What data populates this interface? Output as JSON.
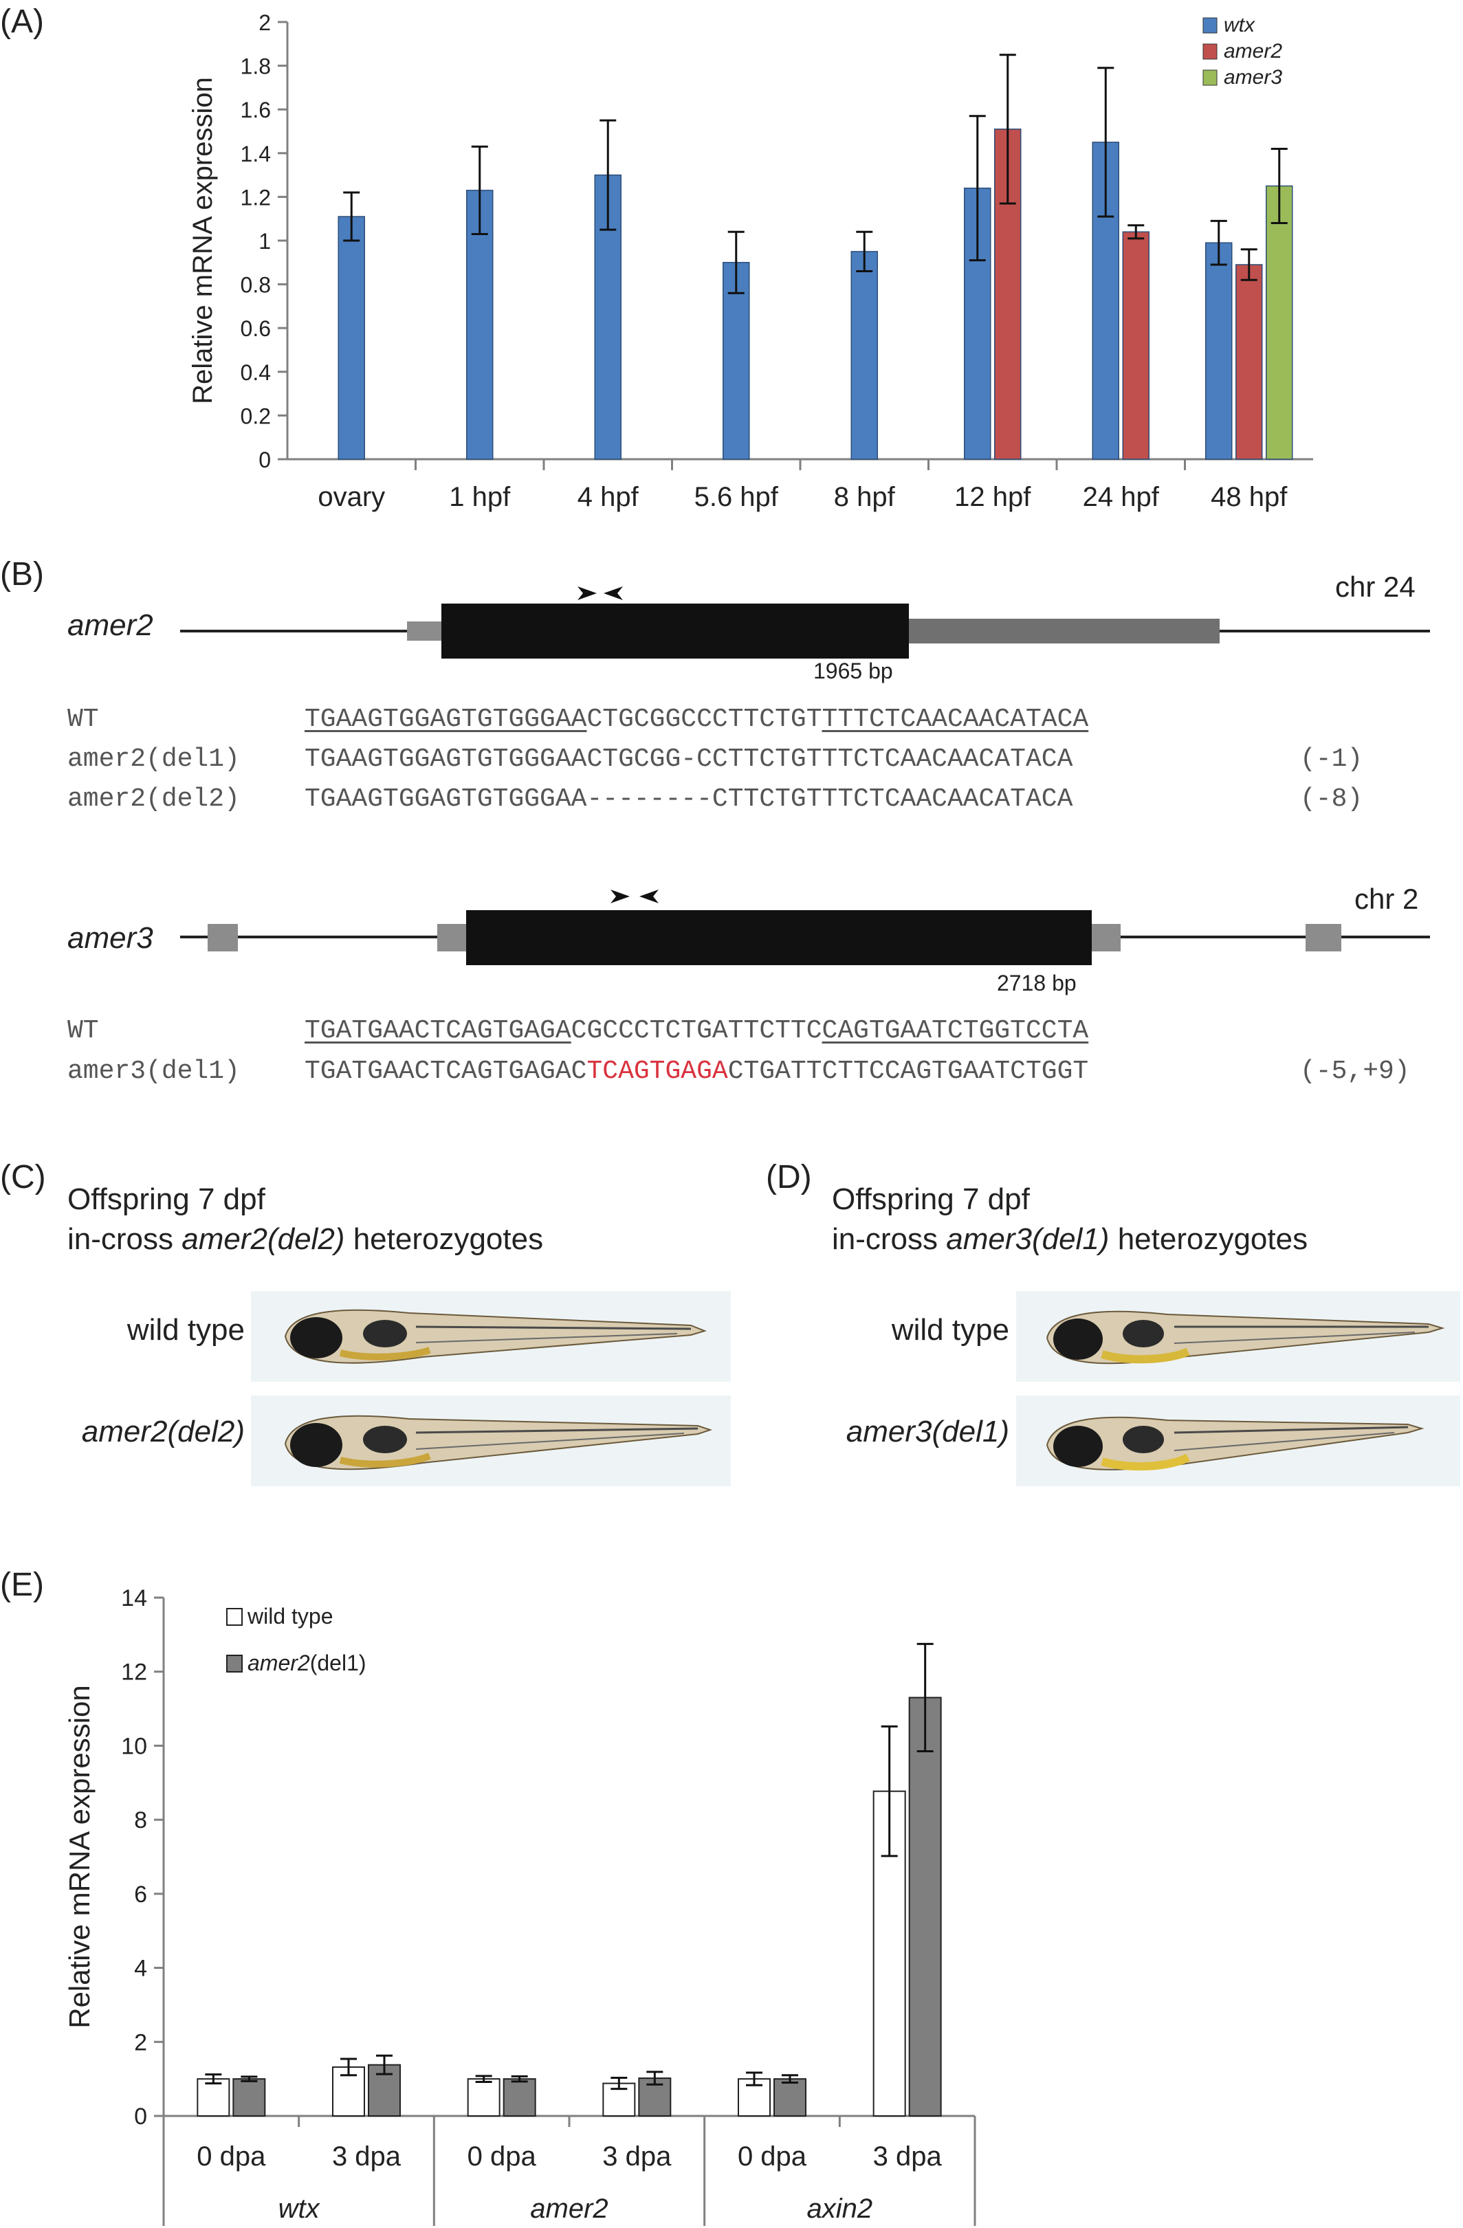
{
  "panels": {
    "A": {
      "letter": "(A)",
      "chart_data": {
        "type": "bar",
        "categories": [
          "ovary",
          "1 hpf",
          "4 hpf",
          "5.6 hpf",
          "8 hpf",
          "12 hpf",
          "24 hpf",
          "48 hpf"
        ],
        "ylabel": "Relative mRNA expression",
        "ylim": [
          0,
          2
        ],
        "yticks": [
          "0",
          "0.2",
          "0.4",
          "0.6",
          "0.8",
          "1",
          "1.2",
          "1.4",
          "1.6",
          "1.8",
          "2"
        ],
        "legend_position": "top-right",
        "series": [
          {
            "name": "wtx",
            "color": "#4a7ebf",
            "values": [
              1.11,
              1.23,
              1.3,
              0.9,
              0.95,
              1.24,
              1.45,
              0.99
            ],
            "errors": [
              0.11,
              0.2,
              0.25,
              0.14,
              0.09,
              0.33,
              0.34,
              0.1
            ]
          },
          {
            "name": "amer2",
            "color": "#c0504d",
            "values": [
              null,
              null,
              null,
              null,
              null,
              1.51,
              1.04,
              0.89
            ],
            "errors": [
              null,
              null,
              null,
              null,
              null,
              0.34,
              0.03,
              0.07
            ]
          },
          {
            "name": "amer3",
            "color": "#9bbb59",
            "values": [
              null,
              null,
              null,
              null,
              null,
              null,
              null,
              1.25
            ],
            "errors": [
              null,
              null,
              null,
              null,
              null,
              null,
              null,
              0.17
            ]
          }
        ]
      }
    },
    "B": {
      "letter": "(B)",
      "amer2": {
        "gene": "amer2",
        "chr": "chr 24",
        "bp": "1965 bp",
        "rows": [
          {
            "label": "WT",
            "u1": "TGAAGTGGAGTGTGGGAA",
            "mid": "CTGCGGCCCTTCTGT",
            "u2": "TTTCTCAACAACATACA",
            "note": ""
          },
          {
            "label": "amer2(del1)",
            "seq": "TGAAGTGGAGTGTGGGAACTGCGG-CCTTCTGTTTCTCAACAACATACA",
            "note": "(-1)"
          },
          {
            "label": "amer2(del2)",
            "seq": "TGAAGTGGAGTGTGGGAA--------CTTCTGTTTCTCAACAACATACA",
            "note": "(-8)"
          }
        ]
      },
      "amer3": {
        "gene": "amer3",
        "chr": "chr 2",
        "bp": "2718 bp",
        "rows": [
          {
            "label": "WT",
            "u1": "TGATGAACTCAGTGAGA",
            "mid": "CGCCCTCTGATTCTTC",
            "u2": "CAGTGAATCTGGTCCTA",
            "note": ""
          },
          {
            "label": "amer3(del1)",
            "pre": "TGATGAACTCAGTGAGAC",
            "ins": "TCAGTGAGA",
            "post": "CTGATTCTTCCAGTGAATCTGGT",
            "note": "(-5,+9)"
          }
        ]
      }
    },
    "C": {
      "letter": "(C)",
      "caption_line1": "Offspring 7 dpf",
      "caption_pre": "in-cross ",
      "caption_gene": "amer2(del2)",
      "caption_post": " heterozygotes",
      "row1": "wild type",
      "row2": "amer2(del2)"
    },
    "D": {
      "letter": "(D)",
      "caption_line1": "Offspring 7 dpf",
      "caption_pre": "in-cross ",
      "caption_gene": "amer3(del1)",
      "caption_post": " heterozygotes",
      "row1": "wild type",
      "row2": "amer3(del1)"
    },
    "E": {
      "letter": "(E)",
      "chart_data": {
        "type": "bar",
        "groups": [
          "wtx",
          "amer2",
          "axin2"
        ],
        "categories": [
          "0 dpa",
          "3 dpa",
          "0 dpa",
          "3 dpa",
          "0 dpa",
          "3 dpa"
        ],
        "ylabel": "Relative mRNA expression",
        "ylim": [
          0,
          14
        ],
        "yticks": [
          "0",
          "2",
          "4",
          "6",
          "8",
          "10",
          "12",
          "14"
        ],
        "legend_position": "top-left",
        "legend": [
          {
            "label": "wild type"
          },
          {
            "label_italic": "amer2",
            "label_rest": "(del1)"
          }
        ],
        "series": [
          {
            "name": "wild type",
            "color": "#ffffff",
            "values": [
              1.0,
              1.32,
              1.0,
              0.88,
              1.0,
              8.77
            ],
            "errors": [
              0.12,
              0.22,
              0.08,
              0.15,
              0.17,
              1.75
            ]
          },
          {
            "name": "amer2(del1)",
            "color": "#7f7f7f",
            "values": [
              1.0,
              1.38,
              1.0,
              1.02,
              1.0,
              11.3
            ],
            "errors": [
              0.06,
              0.25,
              0.07,
              0.17,
              0.1,
              1.45
            ]
          }
        ]
      }
    }
  }
}
